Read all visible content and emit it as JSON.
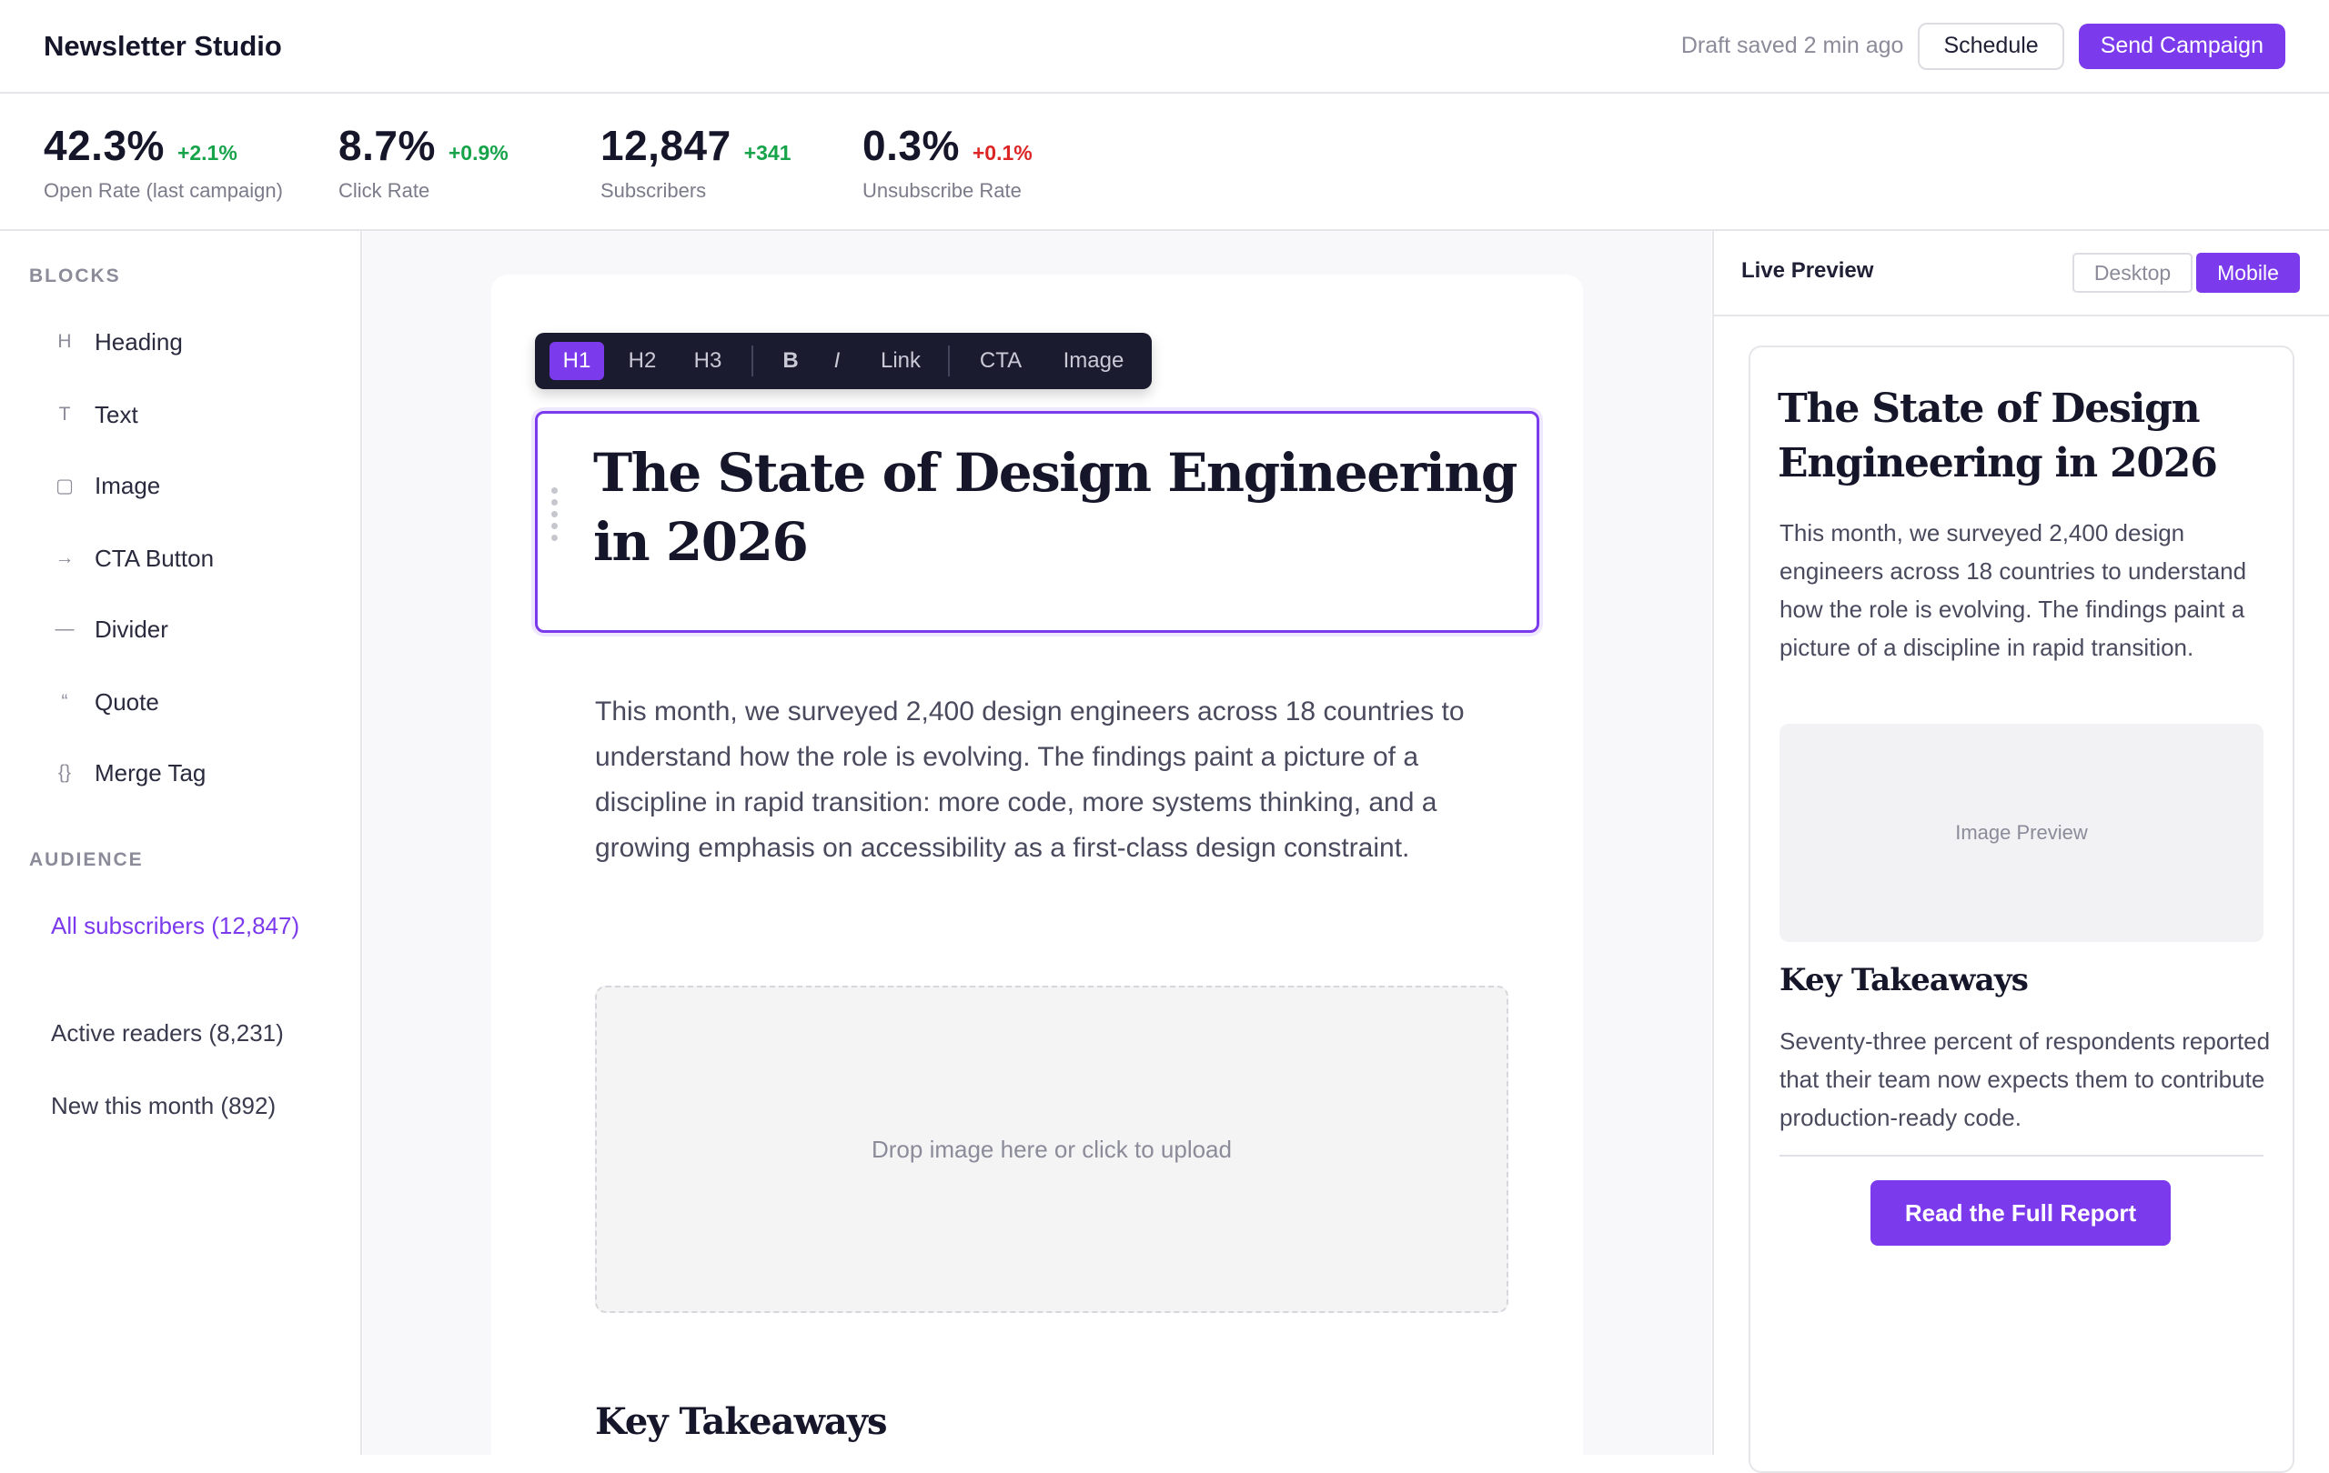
{
  "header": {
    "brand": "Newsletter Studio",
    "draft_status": "Draft saved 2 min ago",
    "schedule_label": "Schedule",
    "send_label": "Send Campaign"
  },
  "stats": [
    {
      "value": "42.3%",
      "delta": "+2.1%",
      "label": "Open Rate (last campaign)",
      "trend": "up"
    },
    {
      "value": "8.7%",
      "delta": "+0.9%",
      "label": "Click Rate",
      "trend": "up"
    },
    {
      "value": "12,847",
      "delta": "+341",
      "label": "Subscribers",
      "trend": "up"
    },
    {
      "value": "0.3%",
      "delta": "+0.1%",
      "label": "Unsubscribe Rate",
      "trend": "down"
    }
  ],
  "sidebar": {
    "blocks_title": "BLOCKS",
    "blocks": [
      {
        "icon": "H",
        "label": "Heading"
      },
      {
        "icon": "T",
        "label": "Text"
      },
      {
        "icon": "▢",
        "label": "Image"
      },
      {
        "icon": "→",
        "label": "CTA Button"
      },
      {
        "icon": "—",
        "label": "Divider"
      },
      {
        "icon": "“",
        "label": "Quote"
      },
      {
        "icon": "{}",
        "label": "Merge Tag"
      }
    ],
    "audience_title": "AUDIENCE",
    "audience": [
      {
        "label": "All subscribers (12,847)",
        "active": true
      },
      {
        "label": "Active readers (8,231)",
        "active": false
      },
      {
        "label": "New this month (892)",
        "active": false
      }
    ]
  },
  "toolbar": {
    "h1": "H1",
    "h2": "H2",
    "h3": "H3",
    "bold": "B",
    "italic": "I",
    "link": "Link",
    "cta": "CTA",
    "image": "Image"
  },
  "editor": {
    "title": "The State of Design Engineering in 2026",
    "intro": "This month, we surveyed 2,400 design engineers across 18 countries to understand how the role is evolving. The findings paint a picture of a discipline in rapid transition: more code, more systems thinking, and a growing emphasis on accessibility as a first-class design constraint.",
    "drop_text": "Drop image here or click to upload",
    "section_heading": "Key Takeaways"
  },
  "preview": {
    "title": "Live Preview",
    "desktop_label": "Desktop",
    "mobile_label": "Mobile",
    "heading": "The State of Design Engineering in 2026",
    "intro": "This month, we surveyed 2,400 design engineers across 18 countries to understand how the role is evolving. The findings paint a picture of a discipline in rapid transition.",
    "image_label": "Image Preview",
    "section_heading": "Key Takeaways",
    "section_body": "Seventy-three percent of respondents reported that their team now expects them to contribute production-ready code.",
    "cta_label": "Read the Full Report"
  },
  "colors": {
    "accent": "#7c3aed",
    "positive": "#16a34a",
    "negative": "#dc2626",
    "toolbar_bg": "#1b1b2f"
  }
}
